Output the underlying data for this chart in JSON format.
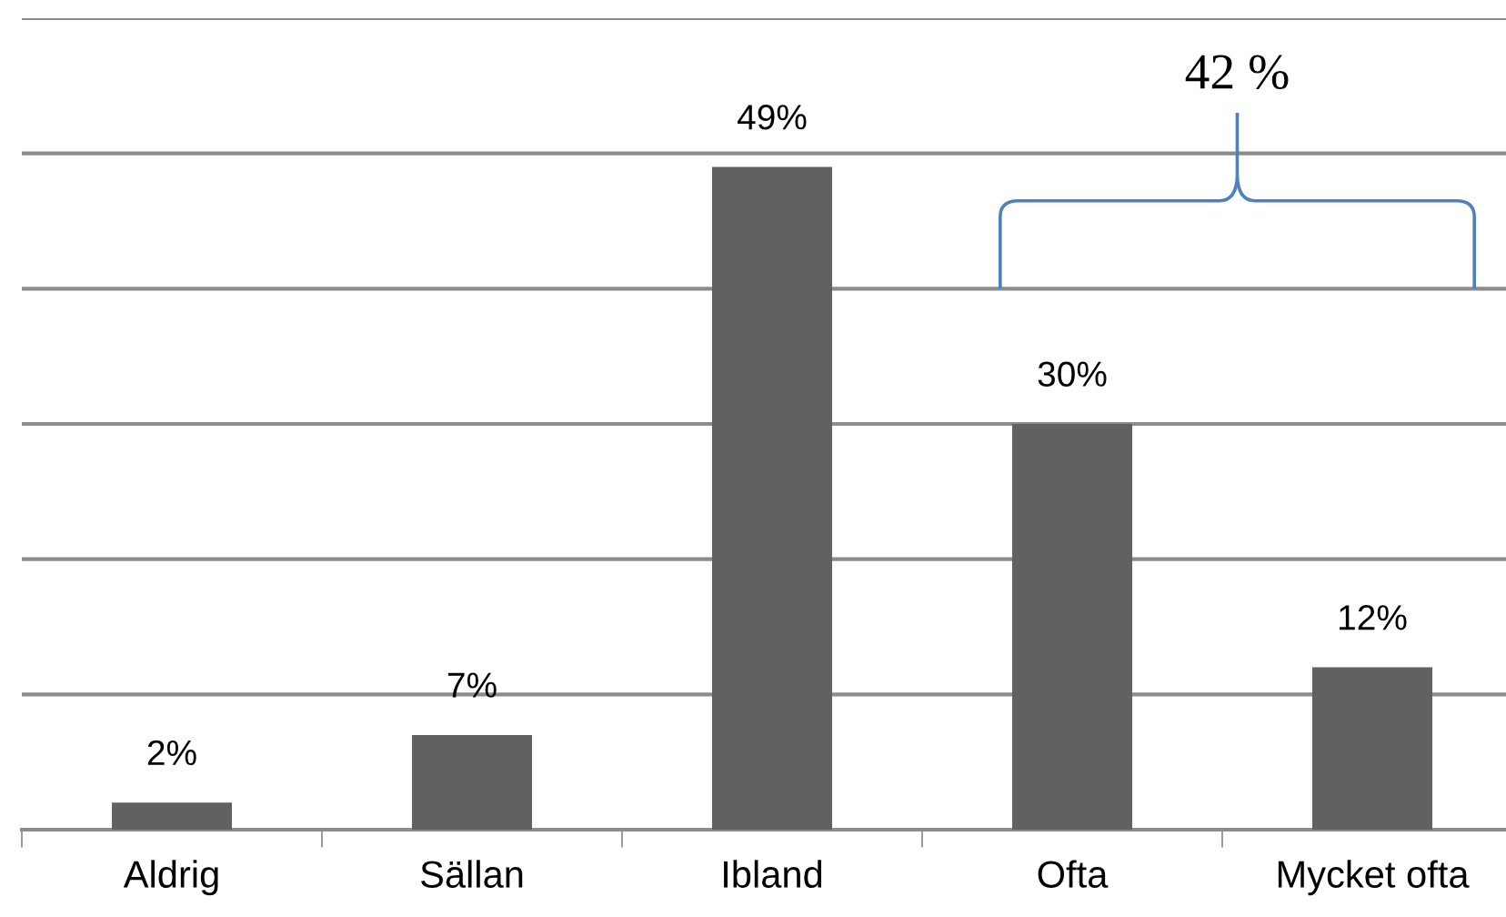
{
  "chart_data": {
    "type": "bar",
    "categories": [
      "Aldrig",
      "Sällan",
      "Ibland",
      "Ofta",
      "Mycket ofta"
    ],
    "values": [
      2,
      7,
      49,
      30,
      12
    ],
    "value_labels": [
      "2%",
      "7%",
      "49%",
      "30%",
      "12%"
    ],
    "color": "#616161",
    "ylim": [
      0,
      60
    ],
    "yticks": [
      {
        "value": 0,
        "label": null
      },
      {
        "value": 10,
        "label": null
      },
      {
        "value": 20,
        "label": null
      },
      {
        "value": 30,
        "label": null
      },
      {
        "value": 40,
        "label": null
      },
      {
        "value": 50,
        "label": null
      },
      {
        "value": 60,
        "label": null
      }
    ],
    "grid": "y",
    "tick_labels": "x",
    "annotations": [
      "42 %"
    ]
  }
}
